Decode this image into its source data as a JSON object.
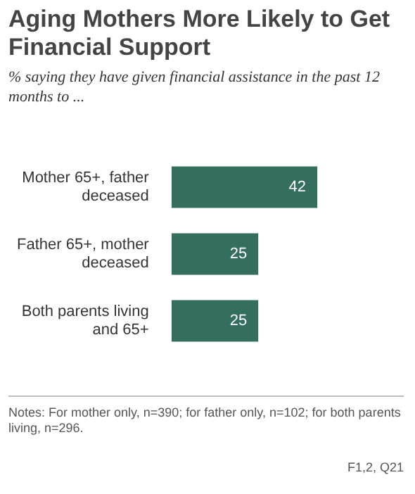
{
  "chart_data": {
    "type": "bar",
    "orientation": "horizontal",
    "title": "Aging Mothers More Likely to Get Financial Support",
    "subtitle": "% saying they have given financial assistance in the past 12 months to ...",
    "categories": [
      "Mother 65+, father deceased",
      "Father 65+, mother deceased",
      "Both parents living and 65+"
    ],
    "values": [
      42,
      25,
      25
    ],
    "color": "#336e5f",
    "data_labels": true,
    "legend": false,
    "annotations": [
      "Notes: For mother only, n=390; for father only, n=102; for both parents living, n=296.",
      "F1,2, Q21"
    ]
  }
}
